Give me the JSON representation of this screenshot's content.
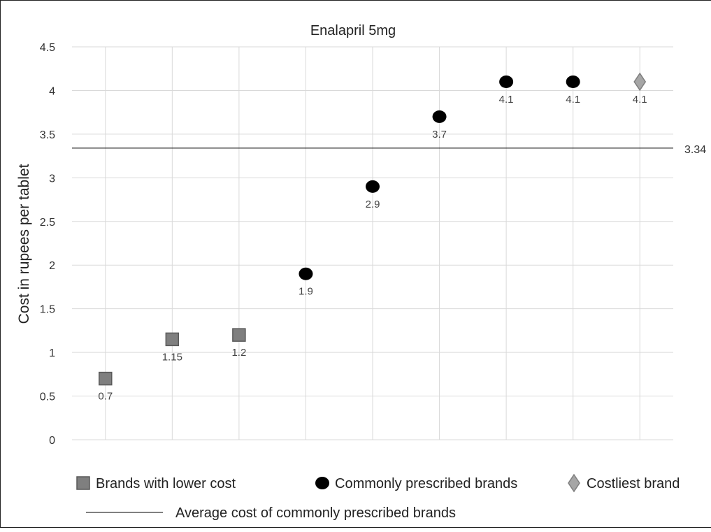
{
  "chart_data": {
    "type": "scatter",
    "title": "Enalapril 5mg",
    "xlabel": "",
    "ylabel": "Cost in rupees per tablet",
    "ylim": [
      0,
      4.5
    ],
    "y_ticks": [
      "0",
      "0.5",
      "1",
      "1.5",
      "2",
      "2.5",
      "3",
      "3.5",
      "4",
      "4.5"
    ],
    "x_positions": 9,
    "grid": "on",
    "legend_position": "bottom",
    "series": [
      {
        "name": "Brands with lower cost",
        "marker": "square",
        "color": "#7f7f7f",
        "points": [
          {
            "x": 1,
            "y": 0.7,
            "label": "0.7"
          },
          {
            "x": 2,
            "y": 1.15,
            "label": "1.15"
          },
          {
            "x": 3,
            "y": 1.2,
            "label": "1.2"
          }
        ]
      },
      {
        "name": "Commonly prescribed brands",
        "marker": "circle",
        "color": "#000000",
        "points": [
          {
            "x": 4,
            "y": 1.9,
            "label": "1.9"
          },
          {
            "x": 5,
            "y": 2.9,
            "label": "2.9"
          },
          {
            "x": 6,
            "y": 3.7,
            "label": "3.7"
          },
          {
            "x": 7,
            "y": 4.1,
            "label": "4.1"
          },
          {
            "x": 8,
            "y": 4.1,
            "label": "4.1"
          }
        ]
      },
      {
        "name": "Costliest brand",
        "marker": "diamond",
        "color": "#a6a6a6",
        "points": [
          {
            "x": 9,
            "y": 4.1,
            "label": "4.1"
          }
        ]
      }
    ],
    "reference_line": {
      "name": "Average cost of commonly prescribed brands",
      "value": 3.34,
      "label": "3.34",
      "color": "#000000"
    }
  }
}
